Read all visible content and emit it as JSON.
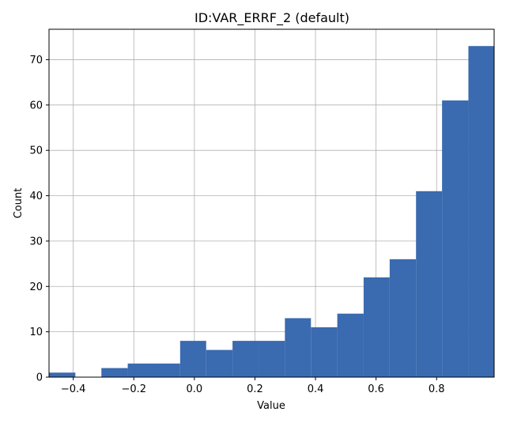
{
  "chart_data": {
    "type": "bar",
    "title": "ID:VAR_ERRF_2 (default)",
    "xlabel": "Value",
    "ylabel": "Count",
    "xlim": [
      -0.48,
      0.99
    ],
    "ylim": [
      0,
      76.7
    ],
    "grid": true,
    "bar_color": "#3a6ab0",
    "x_ticks": [
      {
        "value": -0.4,
        "label": "−0.4"
      },
      {
        "value": -0.2,
        "label": "−0.2"
      },
      {
        "value": 0.0,
        "label": "0.0"
      },
      {
        "value": 0.2,
        "label": "0.2"
      },
      {
        "value": 0.4,
        "label": "0.4"
      },
      {
        "value": 0.6,
        "label": "0.6"
      },
      {
        "value": 0.8,
        "label": "0.8"
      }
    ],
    "y_ticks": [
      {
        "value": 0,
        "label": "0"
      },
      {
        "value": 10,
        "label": "10"
      },
      {
        "value": 20,
        "label": "20"
      },
      {
        "value": 30,
        "label": "30"
      },
      {
        "value": 40,
        "label": "40"
      },
      {
        "value": 50,
        "label": "50"
      },
      {
        "value": 60,
        "label": "60"
      },
      {
        "value": 70,
        "label": "70"
      }
    ],
    "bins": [
      {
        "x0": -0.48,
        "x1": -0.393,
        "count": 1
      },
      {
        "x0": -0.393,
        "x1": -0.307,
        "count": 0
      },
      {
        "x0": -0.307,
        "x1": -0.22,
        "count": 2
      },
      {
        "x0": -0.22,
        "x1": -0.134,
        "count": 3
      },
      {
        "x0": -0.134,
        "x1": -0.047,
        "count": 3
      },
      {
        "x0": -0.047,
        "x1": 0.039,
        "count": 8
      },
      {
        "x0": 0.039,
        "x1": 0.126,
        "count": 6
      },
      {
        "x0": 0.126,
        "x1": 0.212,
        "count": 8
      },
      {
        "x0": 0.212,
        "x1": 0.299,
        "count": 8
      },
      {
        "x0": 0.299,
        "x1": 0.385,
        "count": 13
      },
      {
        "x0": 0.385,
        "x1": 0.472,
        "count": 11
      },
      {
        "x0": 0.472,
        "x1": 0.559,
        "count": 14
      },
      {
        "x0": 0.559,
        "x1": 0.645,
        "count": 22
      },
      {
        "x0": 0.645,
        "x1": 0.732,
        "count": 26
      },
      {
        "x0": 0.732,
        "x1": 0.818,
        "count": 41
      },
      {
        "x0": 0.818,
        "x1": 0.905,
        "count": 61
      },
      {
        "x0": 0.905,
        "x1": 0.99,
        "count": 73
      }
    ]
  }
}
